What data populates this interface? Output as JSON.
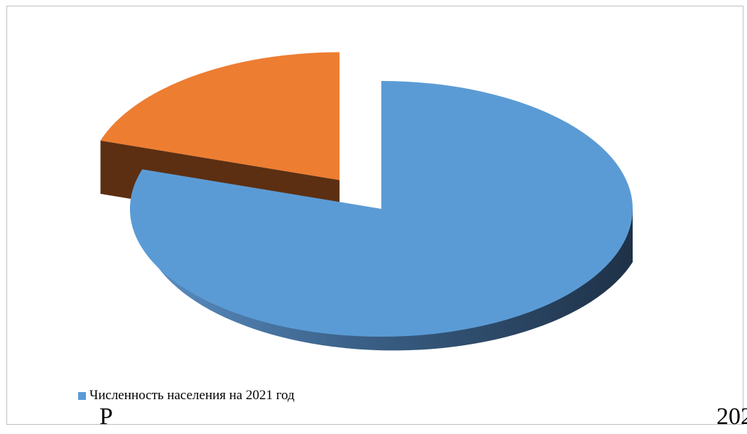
{
  "chart_data": {
    "type": "pie",
    "style": "3d-exploded",
    "slices": [
      {
        "name": "Численность населения на 2021 год",
        "value": 80,
        "color": "#5B9BD5",
        "side_color": "#24405a"
      },
      {
        "name": "",
        "value": 20,
        "color": "#ED7D31",
        "side_color": "#5c2f12"
      }
    ],
    "legend": {
      "position": "bottom-left"
    }
  },
  "caption": {
    "start": "Р",
    "end": "202"
  }
}
